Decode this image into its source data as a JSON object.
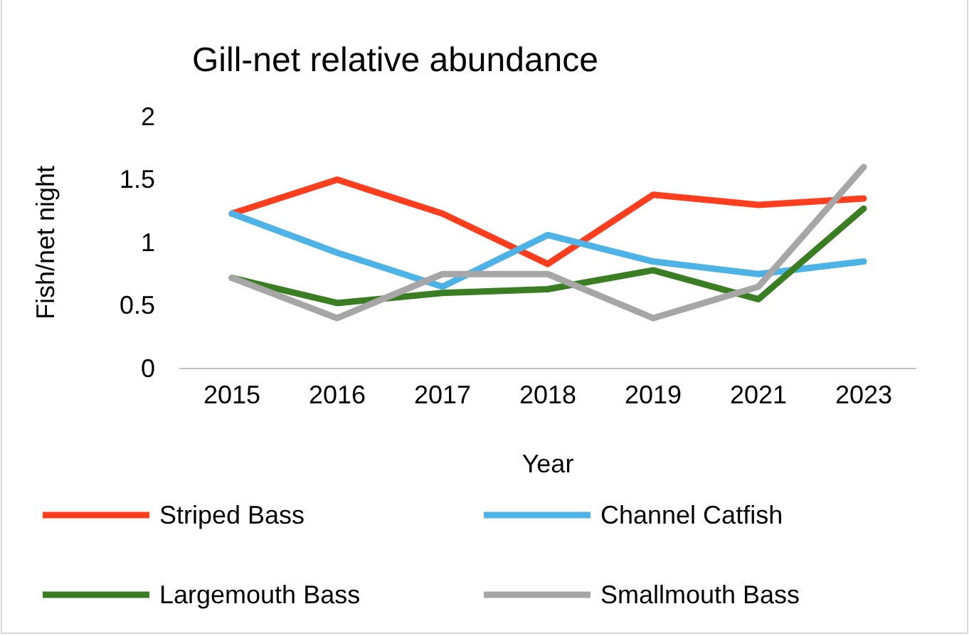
{
  "chart_data": {
    "type": "line",
    "title": "Gill-net relative abundance",
    "xlabel": "Year",
    "ylabel": "Fish/net night",
    "categories": [
      "2015",
      "2016",
      "2017",
      "2018",
      "2019",
      "2021",
      "2023"
    ],
    "series": [
      {
        "name": "Striped Bass",
        "color": "#ff3d1f",
        "values": [
          1.23,
          1.5,
          1.23,
          0.83,
          1.38,
          1.3,
          1.35
        ]
      },
      {
        "name": "Channel Catfish",
        "color": "#4db3e6",
        "values": [
          1.23,
          0.92,
          0.65,
          1.06,
          0.85,
          0.75,
          0.85
        ]
      },
      {
        "name": "Largemouth Bass",
        "color": "#3a7d22",
        "values": [
          0.72,
          0.52,
          0.6,
          0.63,
          0.78,
          0.55,
          1.27
        ]
      },
      {
        "name": "Smallmouth Bass",
        "color": "#a6a6a6",
        "values": [
          0.72,
          0.4,
          0.75,
          0.75,
          0.4,
          0.65,
          1.6
        ]
      }
    ],
    "ylim": [
      0,
      2
    ],
    "yticks": [
      0,
      0.5,
      1,
      1.5,
      2
    ],
    "grid": false,
    "legend": "bottom",
    "marker": "none",
    "line_style": "solid"
  }
}
